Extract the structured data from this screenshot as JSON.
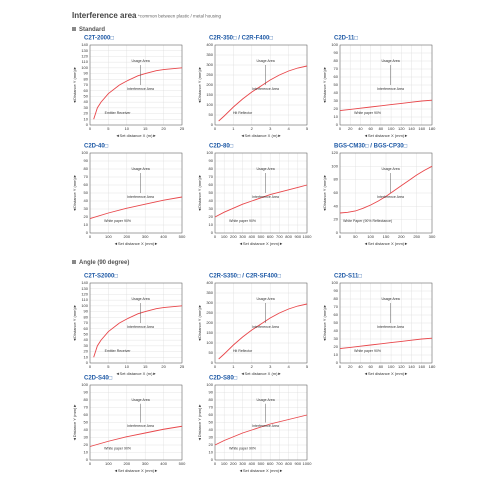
{
  "header": {
    "title": "Interference area",
    "note": "*common between plastic / metal housing",
    "section1": "Standard",
    "section2": "Angle (90 degree)"
  },
  "chart_data": [
    {
      "type": "line",
      "title": "C2T-2000□",
      "xlabel": "◄Set distance X (m)►",
      "ylabel": "◄Distance Y (mm)►",
      "xlim": [
        0,
        25
      ],
      "xticks": [
        0,
        5,
        10,
        15,
        20,
        25
      ],
      "ylim": [
        0,
        140
      ],
      "yticks": [
        0,
        10,
        20,
        30,
        40,
        50,
        60,
        70,
        80,
        90,
        100,
        110,
        120,
        130,
        140
      ],
      "grid": true,
      "annotations": [
        "Usage Area",
        "Interference Area",
        "Emitter  Receiver"
      ],
      "series": [
        {
          "color": "#e8474b",
          "x": [
            1,
            2,
            3,
            5,
            8,
            10,
            13,
            15,
            18,
            20,
            25
          ],
          "values": [
            10,
            30,
            40,
            55,
            70,
            77,
            86,
            90,
            95,
            97,
            100
          ]
        }
      ]
    },
    {
      "type": "line",
      "title": "C2R-350□ / C2R-F400□",
      "xlabel": "◄Set distance X (m)►",
      "ylabel": "◄Distance Y (mm)►",
      "xlim": [
        0,
        5
      ],
      "xticks": [
        0,
        1,
        2,
        3,
        4,
        5
      ],
      "ylim": [
        0,
        400
      ],
      "yticks": [
        0,
        50,
        100,
        150,
        200,
        250,
        300,
        350,
        400
      ],
      "grid": true,
      "annotations": [
        "Usage Area",
        "Interference Area",
        "Hit Reflector"
      ],
      "series": [
        {
          "color": "#e8474b",
          "x": [
            0.2,
            0.5,
            1,
            1.5,
            2,
            2.5,
            3,
            3.5,
            4,
            4.5,
            5
          ],
          "values": [
            20,
            45,
            90,
            130,
            165,
            195,
            225,
            250,
            270,
            285,
            295
          ]
        }
      ]
    },
    {
      "type": "line",
      "title": "C2D-11□",
      "xlabel": "◄Set distance X (mm)►",
      "ylabel": "◄Distance Y (mm)►",
      "xlim": [
        0,
        180
      ],
      "xticks": [
        0,
        20,
        40,
        60,
        80,
        100,
        120,
        140,
        160,
        180
      ],
      "ylim": [
        0,
        100
      ],
      "yticks": [
        0,
        10,
        20,
        30,
        40,
        50,
        60,
        70,
        80,
        90,
        100
      ],
      "grid": true,
      "annotations": [
        "Usage Area",
        "Interference Area",
        "White paper 90%"
      ],
      "series": [
        {
          "color": "#e8474b",
          "x": [
            0,
            20,
            40,
            60,
            80,
            100,
            120,
            140,
            160,
            180
          ],
          "values": [
            18,
            19.5,
            21,
            22.5,
            24,
            25.5,
            27,
            28.5,
            30,
            31
          ]
        }
      ]
    },
    {
      "type": "line",
      "title": "C2D-40□",
      "xlabel": "◄Set distance X (mm)►",
      "ylabel": "◄Distance Y (mm)►",
      "xlim": [
        0,
        500
      ],
      "xticks": [
        0,
        100,
        200,
        300,
        400,
        500
      ],
      "ylim": [
        0,
        100
      ],
      "yticks": [
        0,
        10,
        20,
        30,
        40,
        50,
        60,
        70,
        80,
        90,
        100
      ],
      "grid": true,
      "annotations": [
        "Usage Area",
        "Interference Area",
        "White paper 90%"
      ],
      "series": [
        {
          "color": "#e8474b",
          "x": [
            0,
            100,
            200,
            300,
            400,
            500
          ],
          "values": [
            18,
            25,
            31,
            36,
            41,
            45
          ]
        }
      ]
    },
    {
      "type": "line",
      "title": "C2D-80□",
      "xlabel": "◄Set distance X (mm)►",
      "ylabel": "◄Distance Y (mm)►",
      "xlim": [
        0,
        1000
      ],
      "xticks": [
        0,
        100,
        200,
        300,
        400,
        500,
        600,
        700,
        800,
        900,
        1000
      ],
      "ylim": [
        0,
        100
      ],
      "yticks": [
        0,
        10,
        20,
        30,
        40,
        50,
        60,
        70,
        80,
        90,
        100
      ],
      "grid": true,
      "annotations": [
        "Usage Area",
        "Interference Area",
        "White paper 90%"
      ],
      "series": [
        {
          "color": "#e8474b",
          "x": [
            0,
            100,
            200,
            300,
            400,
            500,
            600,
            700,
            800,
            900,
            1000
          ],
          "values": [
            20,
            26,
            31,
            36,
            40,
            44,
            48,
            51,
            54,
            57,
            60
          ]
        }
      ]
    },
    {
      "type": "line",
      "title": "BGS-CM30□ / BGS-CP30□",
      "xlabel": "◄Set distance X (mm)►",
      "ylabel": "◄Distance Y (mm)►",
      "xlim": [
        0,
        300
      ],
      "xticks": [
        0,
        50,
        100,
        150,
        200,
        250,
        300
      ],
      "ylim": [
        0,
        120
      ],
      "yticks": [
        0,
        20,
        40,
        60,
        80,
        100,
        120
      ],
      "grid": true,
      "annotations": [
        "Usage Area",
        "Interference Area",
        "White Paper (90% Reflectance)"
      ],
      "series": [
        {
          "color": "#e8474b",
          "x": [
            0,
            25,
            50,
            75,
            100,
            125,
            150,
            175,
            200,
            225,
            250,
            275,
            300
          ],
          "values": [
            30,
            31,
            33,
            37,
            42,
            48,
            55,
            63,
            71,
            79,
            87,
            94,
            100
          ]
        }
      ]
    },
    {
      "type": "line",
      "title": "C2T-S2000□",
      "xlabel": "◄Set distance X (m)►",
      "ylabel": "◄Distance Y (mm)►",
      "xlim": [
        0,
        25
      ],
      "xticks": [
        0,
        5,
        10,
        15,
        20,
        25
      ],
      "ylim": [
        0,
        140
      ],
      "yticks": [
        0,
        10,
        20,
        30,
        40,
        50,
        60,
        70,
        80,
        90,
        100,
        110,
        120,
        130,
        140
      ],
      "grid": true,
      "annotations": [
        "Usage Area",
        "Interference Area",
        "Emitter  Receiver"
      ],
      "series": [
        {
          "color": "#e8474b",
          "x": [
            1,
            2,
            3,
            5,
            8,
            10,
            13,
            15,
            18,
            20,
            25
          ],
          "values": [
            10,
            30,
            40,
            55,
            70,
            77,
            86,
            90,
            95,
            97,
            100
          ]
        }
      ]
    },
    {
      "type": "line",
      "title": "C2R-S350□ / C2R-SF400□",
      "xlabel": "◄Set distance X (m)►",
      "ylabel": "◄Distance Y (mm)►",
      "xlim": [
        0,
        5
      ],
      "xticks": [
        0,
        1,
        2,
        3,
        4,
        5
      ],
      "ylim": [
        0,
        400
      ],
      "yticks": [
        0,
        50,
        100,
        150,
        200,
        250,
        300,
        350,
        400
      ],
      "grid": true,
      "annotations": [
        "Usage Area",
        "Interference Area",
        "Hit Reflector"
      ],
      "series": [
        {
          "color": "#e8474b",
          "x": [
            0.2,
            0.5,
            1,
            1.5,
            2,
            2.5,
            3,
            3.5,
            4,
            4.5,
            5
          ],
          "values": [
            20,
            45,
            90,
            130,
            165,
            195,
            225,
            250,
            270,
            285,
            295
          ]
        }
      ]
    },
    {
      "type": "line",
      "title": "C2D-S11□",
      "xlabel": "◄Set distance X (mm)►",
      "ylabel": "◄Distance Y (mm)►",
      "xlim": [
        0,
        180
      ],
      "xticks": [
        0,
        20,
        40,
        60,
        80,
        100,
        120,
        140,
        160,
        180
      ],
      "ylim": [
        0,
        100
      ],
      "yticks": [
        0,
        10,
        20,
        30,
        40,
        50,
        60,
        70,
        80,
        90,
        100
      ],
      "grid": true,
      "annotations": [
        "Usage Area",
        "Interference Area",
        "White paper 90%"
      ],
      "series": [
        {
          "color": "#e8474b",
          "x": [
            0,
            20,
            40,
            60,
            80,
            100,
            120,
            140,
            160,
            180
          ],
          "values": [
            18,
            19.5,
            21,
            22.5,
            24,
            25.5,
            27,
            28.5,
            30,
            31
          ]
        }
      ]
    },
    {
      "type": "line",
      "title": "C2D-S40□",
      "xlabel": "◄Set distance X (mm)►",
      "ylabel": "◄Distance Y (mm)►",
      "xlim": [
        0,
        500
      ],
      "xticks": [
        0,
        100,
        200,
        300,
        400,
        500
      ],
      "ylim": [
        0,
        100
      ],
      "yticks": [
        0,
        10,
        20,
        30,
        40,
        50,
        60,
        70,
        80,
        90,
        100
      ],
      "grid": true,
      "annotations": [
        "Usage Area",
        "Interference Area",
        "White paper 90%"
      ],
      "series": [
        {
          "color": "#e8474b",
          "x": [
            0,
            100,
            200,
            300,
            400,
            500
          ],
          "values": [
            18,
            25,
            31,
            36,
            41,
            45
          ]
        }
      ]
    },
    {
      "type": "line",
      "title": "C2D-S80□",
      "xlabel": "◄Set distance X (mm)►",
      "ylabel": "◄Distance Y (mm)►",
      "xlim": [
        0,
        1000
      ],
      "xticks": [
        0,
        100,
        200,
        300,
        400,
        500,
        600,
        700,
        800,
        900,
        1000
      ],
      "ylim": [
        0,
        100
      ],
      "yticks": [
        0,
        10,
        20,
        30,
        40,
        50,
        60,
        70,
        80,
        90,
        100
      ],
      "grid": true,
      "annotations": [
        "Usage Area",
        "Interference Area",
        "White paper 90%"
      ],
      "series": [
        {
          "color": "#e8474b",
          "x": [
            0,
            100,
            200,
            300,
            400,
            500,
            600,
            700,
            800,
            900,
            1000
          ],
          "values": [
            20,
            26,
            31,
            36,
            40,
            44,
            48,
            51,
            54,
            57,
            60
          ]
        }
      ]
    }
  ]
}
